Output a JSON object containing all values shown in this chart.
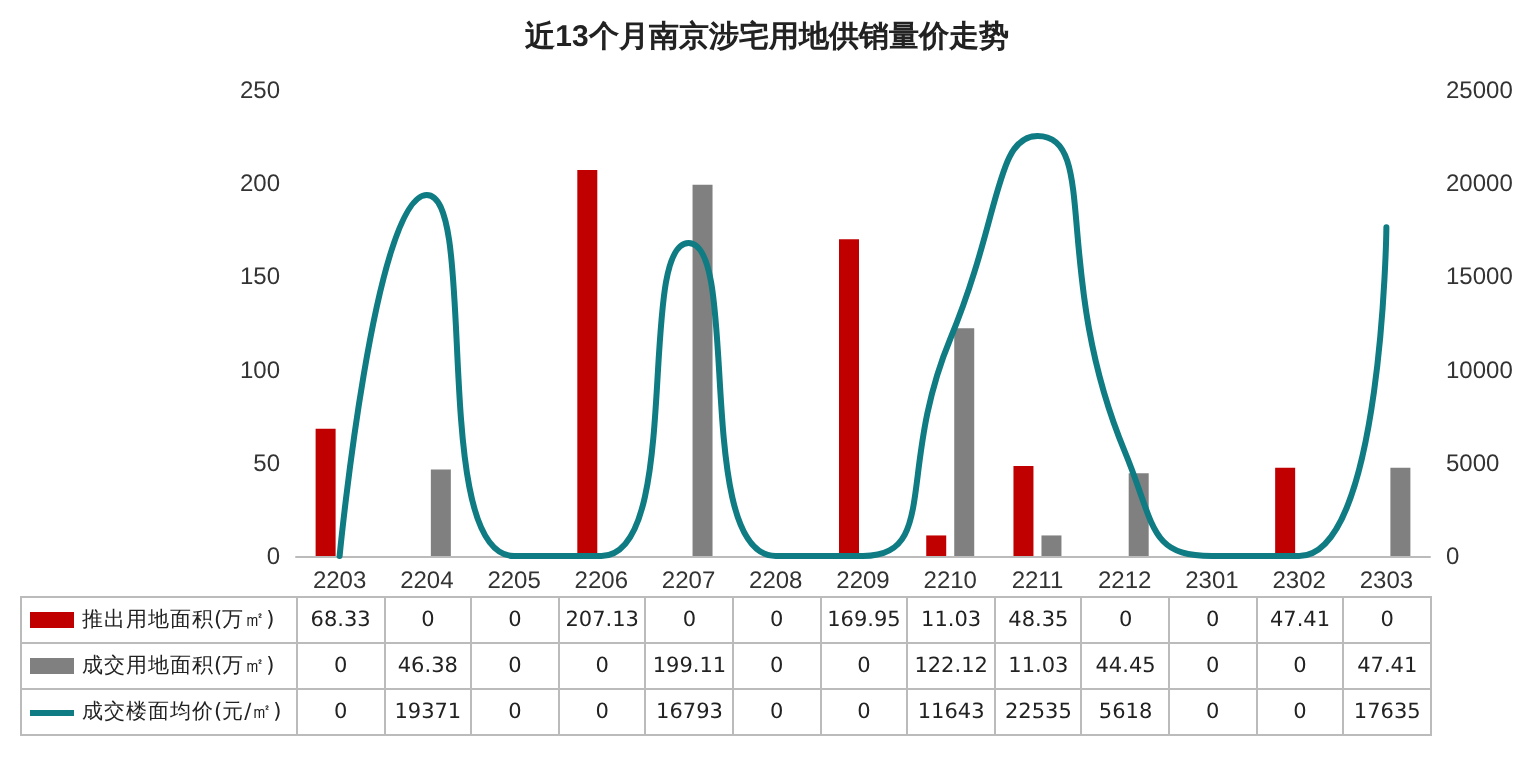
{
  "chart_data": {
    "type": "bar",
    "title": "近13个月南京涉宅用地供销量价走势",
    "categories": [
      "2203",
      "2204",
      "2205",
      "2206",
      "2207",
      "2208",
      "2209",
      "2210",
      "2211",
      "2212",
      "2301",
      "2302",
      "2303"
    ],
    "series": [
      {
        "name": "推出用地面积(万㎡)",
        "color": "#c00000",
        "values": [
          68.33,
          0,
          0,
          207.13,
          0,
          0,
          169.95,
          11.03,
          48.35,
          0,
          0,
          47.41,
          0
        ]
      },
      {
        "name": "成交用地面积(万㎡)",
        "color": "#808080",
        "values": [
          0,
          46.38,
          0,
          0,
          199.11,
          0,
          0,
          122.12,
          11.03,
          44.45,
          0,
          0,
          47.41
        ]
      },
      {
        "name": "成交楼面均价(元/㎡)",
        "color": "#0f7b83",
        "type": "line",
        "axis": "y2",
        "values": [
          0,
          19371,
          0,
          0,
          16793,
          0,
          0,
          11643,
          22535,
          5618,
          0,
          0,
          17635
        ]
      }
    ],
    "ylim": [
      0,
      250
    ],
    "yticks": [
      0,
      50,
      100,
      150,
      200,
      250
    ],
    "y2lim": [
      0,
      25000
    ],
    "y2ticks": [
      0,
      5000,
      10000,
      15000,
      20000,
      25000
    ],
    "data_labels": true,
    "legend": "bottom left"
  }
}
